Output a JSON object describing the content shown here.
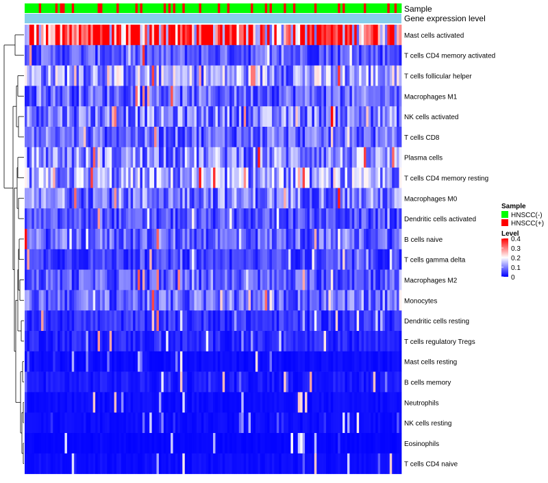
{
  "chart_data": {
    "type": "heatmap",
    "annotation_tracks": [
      {
        "name": "Sample"
      },
      {
        "name": "Gene expression level"
      }
    ],
    "rows": [
      "Mast cells activated",
      "T cells CD4 memory activated",
      "T cells follicular helper",
      "Macrophages M1",
      "NK cells activated",
      "T cells CD8",
      "Plasma cells",
      "T cells CD4 memory resting",
      "Macrophages M0",
      "Dendritic cells activated",
      "B cells naive",
      "T cells gamma delta",
      "Macrophages M2",
      "Monocytes",
      "Dendritic cells resting",
      "T cells regulatory  Tregs",
      "Mast cells resting",
      "B cells memory",
      "Neutrophils",
      "NK cells resting",
      "Eosinophils",
      "T cells CD4 naive"
    ],
    "row_levels": [
      0.36,
      0.07,
      0.13,
      0.08,
      0.1,
      0.08,
      0.11,
      0.12,
      0.1,
      0.06,
      0.08,
      0.05,
      0.07,
      0.08,
      0.04,
      0.03,
      0.01,
      0.02,
      0.01,
      0.01,
      0.005,
      0.01
    ],
    "legend_sample": {
      "title": "Sample",
      "items": [
        {
          "label": "HNSCC(-)",
          "color": "#00ff00"
        },
        {
          "label": "HNSCC(+)",
          "color": "#ff0000"
        }
      ]
    },
    "legend_level": {
      "title": "Level",
      "ticks": [
        {
          "label": "0.4",
          "value": 0.4
        },
        {
          "label": "0.3",
          "value": 0.3
        },
        {
          "label": "0.2",
          "value": 0.2
        },
        {
          "label": "0.1",
          "value": 0.1
        },
        {
          "label": "0",
          "value": 0
        }
      ],
      "range": [
        0,
        0.4
      ]
    },
    "colors": {
      "low": "#0000ff",
      "mid": "#ffffff",
      "high": "#ff0000",
      "expression_track": "#87ceeb",
      "sample_negative": "#00ff00",
      "sample_positive": "#ff0000"
    },
    "n_samples": 160
  }
}
